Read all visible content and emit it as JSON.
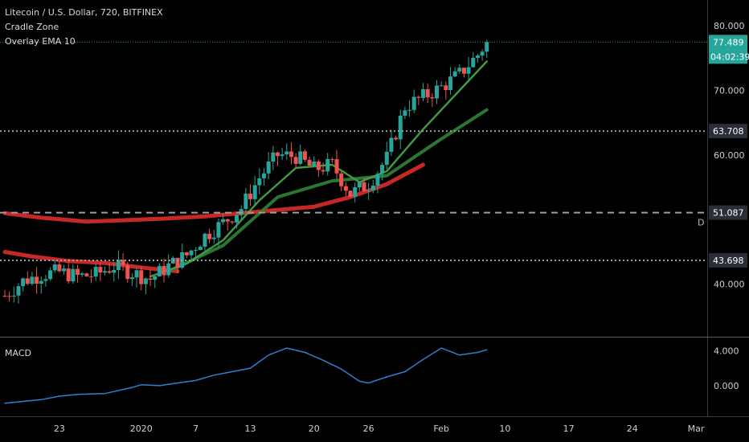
{
  "legend": {
    "symbol": "Litecoin / U.S. Dollar, 720, BITFINEX",
    "indicator1": "Cradle Zone",
    "indicator2": "Overlay EMA 10",
    "macd": "MACD"
  },
  "colors": {
    "background": "#000000",
    "candle_up": "#26a69a",
    "candle_down": "#ef5350",
    "ema_thick": "#c62828",
    "ema_green": "#2e7d32",
    "ema_lime": "#43a047",
    "macd_line": "#2f7fd0",
    "price_tag_bg": "#2a2e39",
    "current_tag_bg": "#26a69a",
    "hline_dotted": "#9e9e9e",
    "hline_dashed": "#9e9e9e",
    "axis_text": "#cfcfcf"
  },
  "chart_data": [
    {
      "type": "candlestick",
      "title": "Litecoin / U.S. Dollar, 720, BITFINEX",
      "y_ticks": [
        "80.000",
        "70.000",
        "60.000",
        "40.000"
      ],
      "ylim": [
        32,
        84
      ],
      "x_ticks": [
        "23",
        "2020",
        "7",
        "13",
        "20",
        "26",
        "Feb",
        "10",
        "17",
        "24",
        "Mar"
      ],
      "x_range": [
        "Dec 17, 2019",
        "Mar 2, 2020"
      ],
      "current_price": "77.489",
      "countdown": "04:02:39",
      "horizontal_lines": [
        {
          "value": 63.708,
          "label": "63.708",
          "style": "dotted"
        },
        {
          "value": 51.087,
          "label": "51.087",
          "style": "dashed"
        },
        {
          "value": 43.698,
          "label": "43.698",
          "style": "dotted"
        }
      ],
      "side_marker": "D",
      "close_path": [
        [
          "Dec 17, 2019",
          38.2
        ],
        [
          "Dec 19, 2019",
          40.5
        ],
        [
          "Dec 21, 2019",
          41.5
        ],
        [
          "Dec 23, 2019",
          41.9
        ],
        [
          "Dec 25, 2019",
          41.2
        ],
        [
          "Dec 27, 2019",
          41.5
        ],
        [
          "Dec 29, 2019",
          42.8
        ],
        [
          "Dec 31, 2019",
          41.8
        ],
        [
          "Jan 2, 2020",
          40.8
        ],
        [
          "Jan 4, 2020",
          42.8
        ],
        [
          "Jan 6, 2020",
          44.5
        ],
        [
          "Jan 8, 2020",
          47.5
        ],
        [
          "Jan 10, 2020",
          49.5
        ],
        [
          "Jan 12, 2020",
          51.8
        ],
        [
          "Jan 14, 2020",
          56.5
        ],
        [
          "Jan 16, 2020",
          60.0
        ],
        [
          "Jan 18, 2020",
          59.8
        ],
        [
          "Jan 20, 2020",
          57.8
        ],
        [
          "Jan 22, 2020",
          58.5
        ],
        [
          "Jan 24, 2020",
          54.0
        ],
        [
          "Jan 26, 2020",
          55.5
        ],
        [
          "Jan 28, 2020",
          59.5
        ],
        [
          "Jan 30, 2020",
          67.5
        ],
        [
          "Feb 1, 2020",
          69.0
        ],
        [
          "Feb 3, 2020",
          70.5
        ],
        [
          "Feb 5, 2020",
          72.5
        ],
        [
          "Feb 7, 2020",
          75.5
        ],
        [
          "Feb 8, 2020",
          77.489
        ]
      ],
      "series": [
        {
          "name": "Cradle Zone",
          "color_key": "ema_thick",
          "points": [
            [
              "Dec 17, 2019",
              45.0
            ],
            [
              "Dec 20, 2019",
              44.3
            ],
            [
              "Dec 24, 2019",
              43.6
            ],
            [
              "Dec 28, 2019",
              43.3
            ],
            [
              "Jan 1, 2020",
              42.6
            ],
            [
              "Jan 5, 2020",
              42.0
            ]
          ]
        },
        {
          "name": "Cradle Zone",
          "color_key": "ema_thick",
          "points": [
            [
              "Dec 17, 2019",
              51.0
            ],
            [
              "Dec 21, 2019",
              50.3
            ],
            [
              "Dec 26, 2019",
              49.7
            ],
            [
              "Dec 30, 2019",
              49.9
            ],
            [
              "Jan 4, 2020",
              50.2
            ],
            [
              "Jan 8, 2020",
              50.5
            ],
            [
              "Jan 12, 2020",
              51.0
            ],
            [
              "Jan 16, 2020",
              51.5
            ],
            [
              "Jan 20, 2020",
              52.0
            ],
            [
              "Jan 24, 2020",
              53.5
            ],
            [
              "Jan 28, 2020",
              55.5
            ],
            [
              "Feb 1, 2020",
              58.5
            ]
          ]
        },
        {
          "name": "Overlay EMA 10",
          "color_key": "ema_lime",
          "points": [
            [
              "Jan 2, 2020",
              41.2
            ],
            [
              "Jan 6, 2020",
              43.2
            ],
            [
              "Jan 10, 2020",
              46.8
            ],
            [
              "Jan 14, 2020",
              53.0
            ],
            [
              "Jan 18, 2020",
              58.0
            ],
            [
              "Jan 22, 2020",
              58.5
            ],
            [
              "Jan 25, 2020",
              55.8
            ],
            [
              "Jan 28, 2020",
              57.5
            ],
            [
              "Feb 1, 2020",
              64.0
            ],
            [
              "Feb 5, 2020",
              70.0
            ],
            [
              "Feb 8, 2020",
              74.5
            ]
          ]
        },
        {
          "name": "Overlay EMA 10",
          "color_key": "ema_green",
          "points": [
            [
              "Jan 4, 2020",
              42.0
            ],
            [
              "Jan 10, 2020",
              46.0
            ],
            [
              "Jan 16, 2020",
              53.5
            ],
            [
              "Jan 22, 2020",
              56.0
            ],
            [
              "Jan 28, 2020",
              56.8
            ],
            [
              "Feb 3, 2020",
              62.5
            ],
            [
              "Feb 8, 2020",
              67.0
            ]
          ]
        }
      ]
    },
    {
      "type": "line",
      "title": "MACD",
      "y_ticks": [
        "4.000",
        "0.000"
      ],
      "ylim": [
        -3.5,
        5.5
      ],
      "series": [
        {
          "name": "MACD",
          "color_key": "macd_line",
          "points": [
            [
              "Dec 17, 2019",
              -2.0
            ],
            [
              "Dec 21, 2019",
              -1.6
            ],
            [
              "Dec 23, 2019",
              -1.2
            ],
            [
              "Dec 25, 2019",
              -1.0
            ],
            [
              "Dec 28, 2019",
              -0.9
            ],
            [
              "Dec 31, 2019",
              -0.2
            ],
            [
              "Jan 1, 2020",
              0.1
            ],
            [
              "Jan 3, 2020",
              0.0
            ],
            [
              "Jan 5, 2020",
              0.3
            ],
            [
              "Jan 7, 2020",
              0.6
            ],
            [
              "Jan 9, 2020",
              1.2
            ],
            [
              "Jan 11, 2020",
              1.6
            ],
            [
              "Jan 13, 2020",
              2.0
            ],
            [
              "Jan 15, 2020",
              3.5
            ],
            [
              "Jan 17, 2020",
              4.3
            ],
            [
              "Jan 19, 2020",
              3.8
            ],
            [
              "Jan 21, 2020",
              2.9
            ],
            [
              "Jan 23, 2020",
              1.9
            ],
            [
              "Jan 25, 2020",
              0.5
            ],
            [
              "Jan 26, 2020",
              0.3
            ],
            [
              "Jan 28, 2020",
              1.0
            ],
            [
              "Jan 30, 2020",
              1.6
            ],
            [
              "Feb 1, 2020",
              3.0
            ],
            [
              "Feb 3, 2020",
              4.3
            ],
            [
              "Feb 5, 2020",
              3.5
            ],
            [
              "Feb 7, 2020",
              3.8
            ],
            [
              "Feb 8, 2020",
              4.1
            ]
          ]
        }
      ]
    }
  ]
}
